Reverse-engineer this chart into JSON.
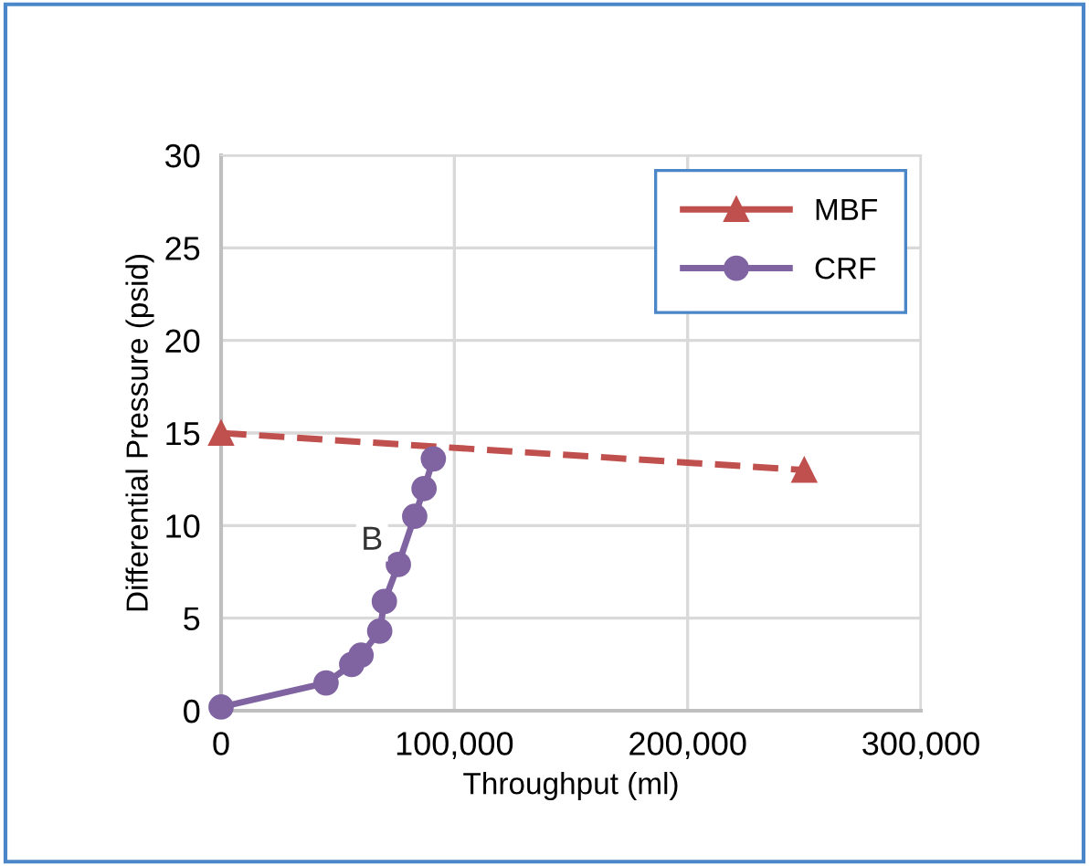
{
  "chart_data": {
    "type": "line",
    "xlabel": "Throughput (ml)",
    "ylabel": "Differential Pressure (psid)",
    "xlim": [
      0,
      300000
    ],
    "xticks": [
      {
        "value": 0,
        "label": "0"
      },
      {
        "value": 100000,
        "label": "100,000"
      },
      {
        "value": 200000,
        "label": "200,000"
      },
      {
        "value": 300000,
        "label": "300,000"
      }
    ],
    "ylim": [
      0,
      30
    ],
    "yticks": [
      0,
      5,
      10,
      15,
      20,
      25,
      30
    ],
    "grid": true,
    "legend": "top right",
    "annotations": [
      "B"
    ],
    "series": [
      {
        "name": "MBF",
        "color": "#c0504d",
        "x": [
          0,
          250000
        ],
        "values": [
          15,
          13
        ],
        "marker": "triangle",
        "line_style": "dashed"
      },
      {
        "name": "CRF",
        "color": "#8064a2",
        "x": [
          0,
          45000,
          56000,
          60000,
          68000,
          70000,
          76000,
          83000,
          87000,
          91000
        ],
        "values": [
          0.2,
          1.5,
          2.5,
          3,
          4.3,
          5.9,
          7.9,
          10.5,
          12,
          13.6
        ],
        "marker": "circle",
        "line_style": "solid"
      }
    ]
  }
}
